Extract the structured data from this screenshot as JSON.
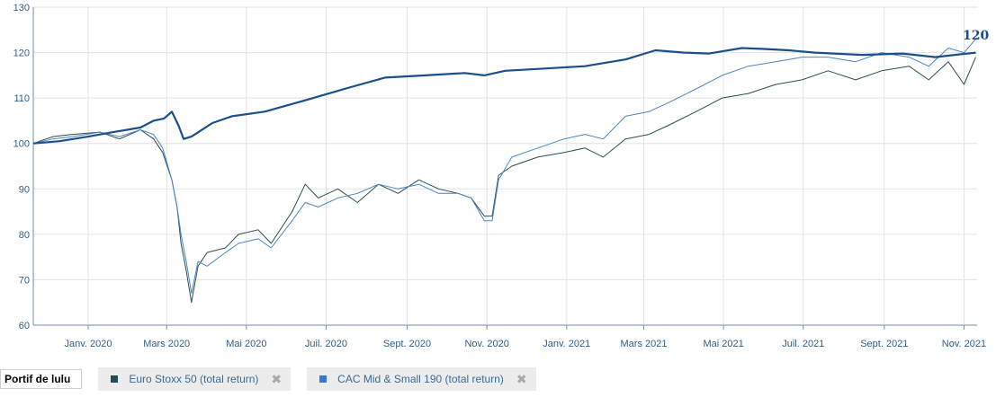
{
  "chart_data": {
    "type": "line",
    "ylim": [
      60,
      130
    ],
    "yticks": [
      60,
      70,
      80,
      90,
      100,
      110,
      120,
      130
    ],
    "x_ticks": [
      "Janv. 2020",
      "Mars 2020",
      "Mai 2020",
      "Juil. 2020",
      "Sept. 2020",
      "Nov. 2020",
      "Janv. 2021",
      "Mars 2021",
      "Mai 2021",
      "Juil. 2021",
      "Sept. 2021",
      "Nov. 2021"
    ],
    "grid": true,
    "end_label": "120",
    "series": [
      {
        "name": "Portif de lulu",
        "color": "#1b4f8c",
        "x": [
          "2019-11-20",
          "2019-12-10",
          "2020-01-01",
          "2020-01-20",
          "2020-02-10",
          "2020-02-20",
          "2020-02-28",
          "2020-03-05",
          "2020-03-10",
          "2020-03-14",
          "2020-03-20",
          "2020-04-05",
          "2020-04-20",
          "2020-05-15",
          "2020-06-15",
          "2020-07-15",
          "2020-08-15",
          "2020-09-15",
          "2020-10-15",
          "2020-10-30",
          "2020-11-15",
          "2020-12-15",
          "2021-01-15",
          "2021-02-15",
          "2021-03-10",
          "2021-04-01",
          "2021-04-20",
          "2021-05-15",
          "2021-06-01",
          "2021-06-20",
          "2021-07-10",
          "2021-08-15",
          "2021-09-15",
          "2021-10-10",
          "2021-10-25",
          "2021-11-10"
        ],
        "values": [
          100,
          100.5,
          101.5,
          102.5,
          103.5,
          105,
          105.5,
          107,
          104,
          101,
          101.5,
          104.5,
          106,
          107,
          109.5,
          112,
          114.5,
          115,
          115.5,
          115,
          116,
          116.5,
          117,
          118.5,
          120.5,
          120,
          119.8,
          121,
          120.8,
          120.5,
          120,
          119.5,
          119.8,
          119,
          119.5,
          120
        ]
      },
      {
        "name": "Euro Stoxx 50 (total return)",
        "color": "#2c4f4f",
        "x": [
          "2019-11-20",
          "2019-12-05",
          "2019-12-20",
          "2020-01-10",
          "2020-01-25",
          "2020-02-10",
          "2020-02-20",
          "2020-02-27",
          "2020-03-05",
          "2020-03-09",
          "2020-03-12",
          "2020-03-16",
          "2020-03-20",
          "2020-03-25",
          "2020-04-01",
          "2020-04-15",
          "2020-04-25",
          "2020-05-10",
          "2020-05-20",
          "2020-06-05",
          "2020-06-15",
          "2020-06-25",
          "2020-07-10",
          "2020-07-25",
          "2020-08-10",
          "2020-08-25",
          "2020-09-10",
          "2020-09-25",
          "2020-10-10",
          "2020-10-20",
          "2020-10-30",
          "2020-11-05",
          "2020-11-10",
          "2020-11-20",
          "2020-12-10",
          "2020-12-30",
          "2021-01-15",
          "2021-01-29",
          "2021-02-15",
          "2021-03-05",
          "2021-03-20",
          "2021-04-10",
          "2021-04-30",
          "2021-05-20",
          "2021-06-10",
          "2021-06-30",
          "2021-07-20",
          "2021-08-10",
          "2021-08-30",
          "2021-09-20",
          "2021-10-05",
          "2021-10-20",
          "2021-11-01",
          "2021-11-10"
        ],
        "values": [
          100,
          101.5,
          102,
          102.5,
          101,
          103,
          101,
          98,
          92,
          86,
          78,
          72,
          65,
          73,
          76,
          77,
          80,
          81,
          78,
          85,
          91,
          88,
          90,
          87,
          91,
          89,
          92,
          90,
          89,
          88,
          84,
          84,
          93,
          95,
          97,
          98,
          99,
          97,
          101,
          102,
          104,
          107,
          110,
          111,
          113,
          114,
          116,
          114,
          116,
          117,
          114,
          118,
          113,
          119
        ]
      },
      {
        "name": "CAC Mid & Small 190 (total return)",
        "color": "#4a86c8",
        "x": [
          "2019-11-20",
          "2019-12-05",
          "2019-12-20",
          "2020-01-10",
          "2020-01-25",
          "2020-02-10",
          "2020-02-20",
          "2020-02-27",
          "2020-03-05",
          "2020-03-09",
          "2020-03-12",
          "2020-03-16",
          "2020-03-20",
          "2020-03-25",
          "2020-04-01",
          "2020-04-15",
          "2020-04-25",
          "2020-05-10",
          "2020-05-20",
          "2020-06-05",
          "2020-06-15",
          "2020-06-25",
          "2020-07-10",
          "2020-07-25",
          "2020-08-10",
          "2020-08-25",
          "2020-09-10",
          "2020-09-25",
          "2020-10-10",
          "2020-10-20",
          "2020-10-30",
          "2020-11-05",
          "2020-11-10",
          "2020-11-20",
          "2020-12-10",
          "2020-12-30",
          "2021-01-15",
          "2021-01-29",
          "2021-02-15",
          "2021-03-05",
          "2021-03-20",
          "2021-04-10",
          "2021-04-30",
          "2021-05-20",
          "2021-06-10",
          "2021-06-30",
          "2021-07-20",
          "2021-08-10",
          "2021-08-30",
          "2021-09-20",
          "2021-10-05",
          "2021-10-20",
          "2021-11-01",
          "2021-11-10"
        ],
        "values": [
          100,
          101,
          101.5,
          102.5,
          101.5,
          103,
          102,
          99,
          92,
          86,
          80,
          74,
          67,
          74,
          73,
          76,
          78,
          79,
          77,
          83,
          87,
          86,
          88,
          89,
          91,
          90,
          91,
          89,
          89,
          88,
          83,
          83,
          92,
          97,
          99,
          101,
          102,
          101,
          106,
          107,
          109,
          112,
          115,
          117,
          118,
          119,
          119,
          118,
          120,
          119,
          117,
          121,
          120,
          123
        ]
      }
    ]
  },
  "legend": {
    "items": [
      {
        "label": "Portif de lulu",
        "color": "#1b4f8c",
        "closable": false
      },
      {
        "label": "Euro Stoxx 50 (total return)",
        "color": "#1f4e5a",
        "closable": true,
        "close_glyph": "✖"
      },
      {
        "label": "CAC Mid & Small 190 (total return)",
        "color": "#3a78d8",
        "closable": true,
        "close_glyph": "✖"
      }
    ]
  }
}
